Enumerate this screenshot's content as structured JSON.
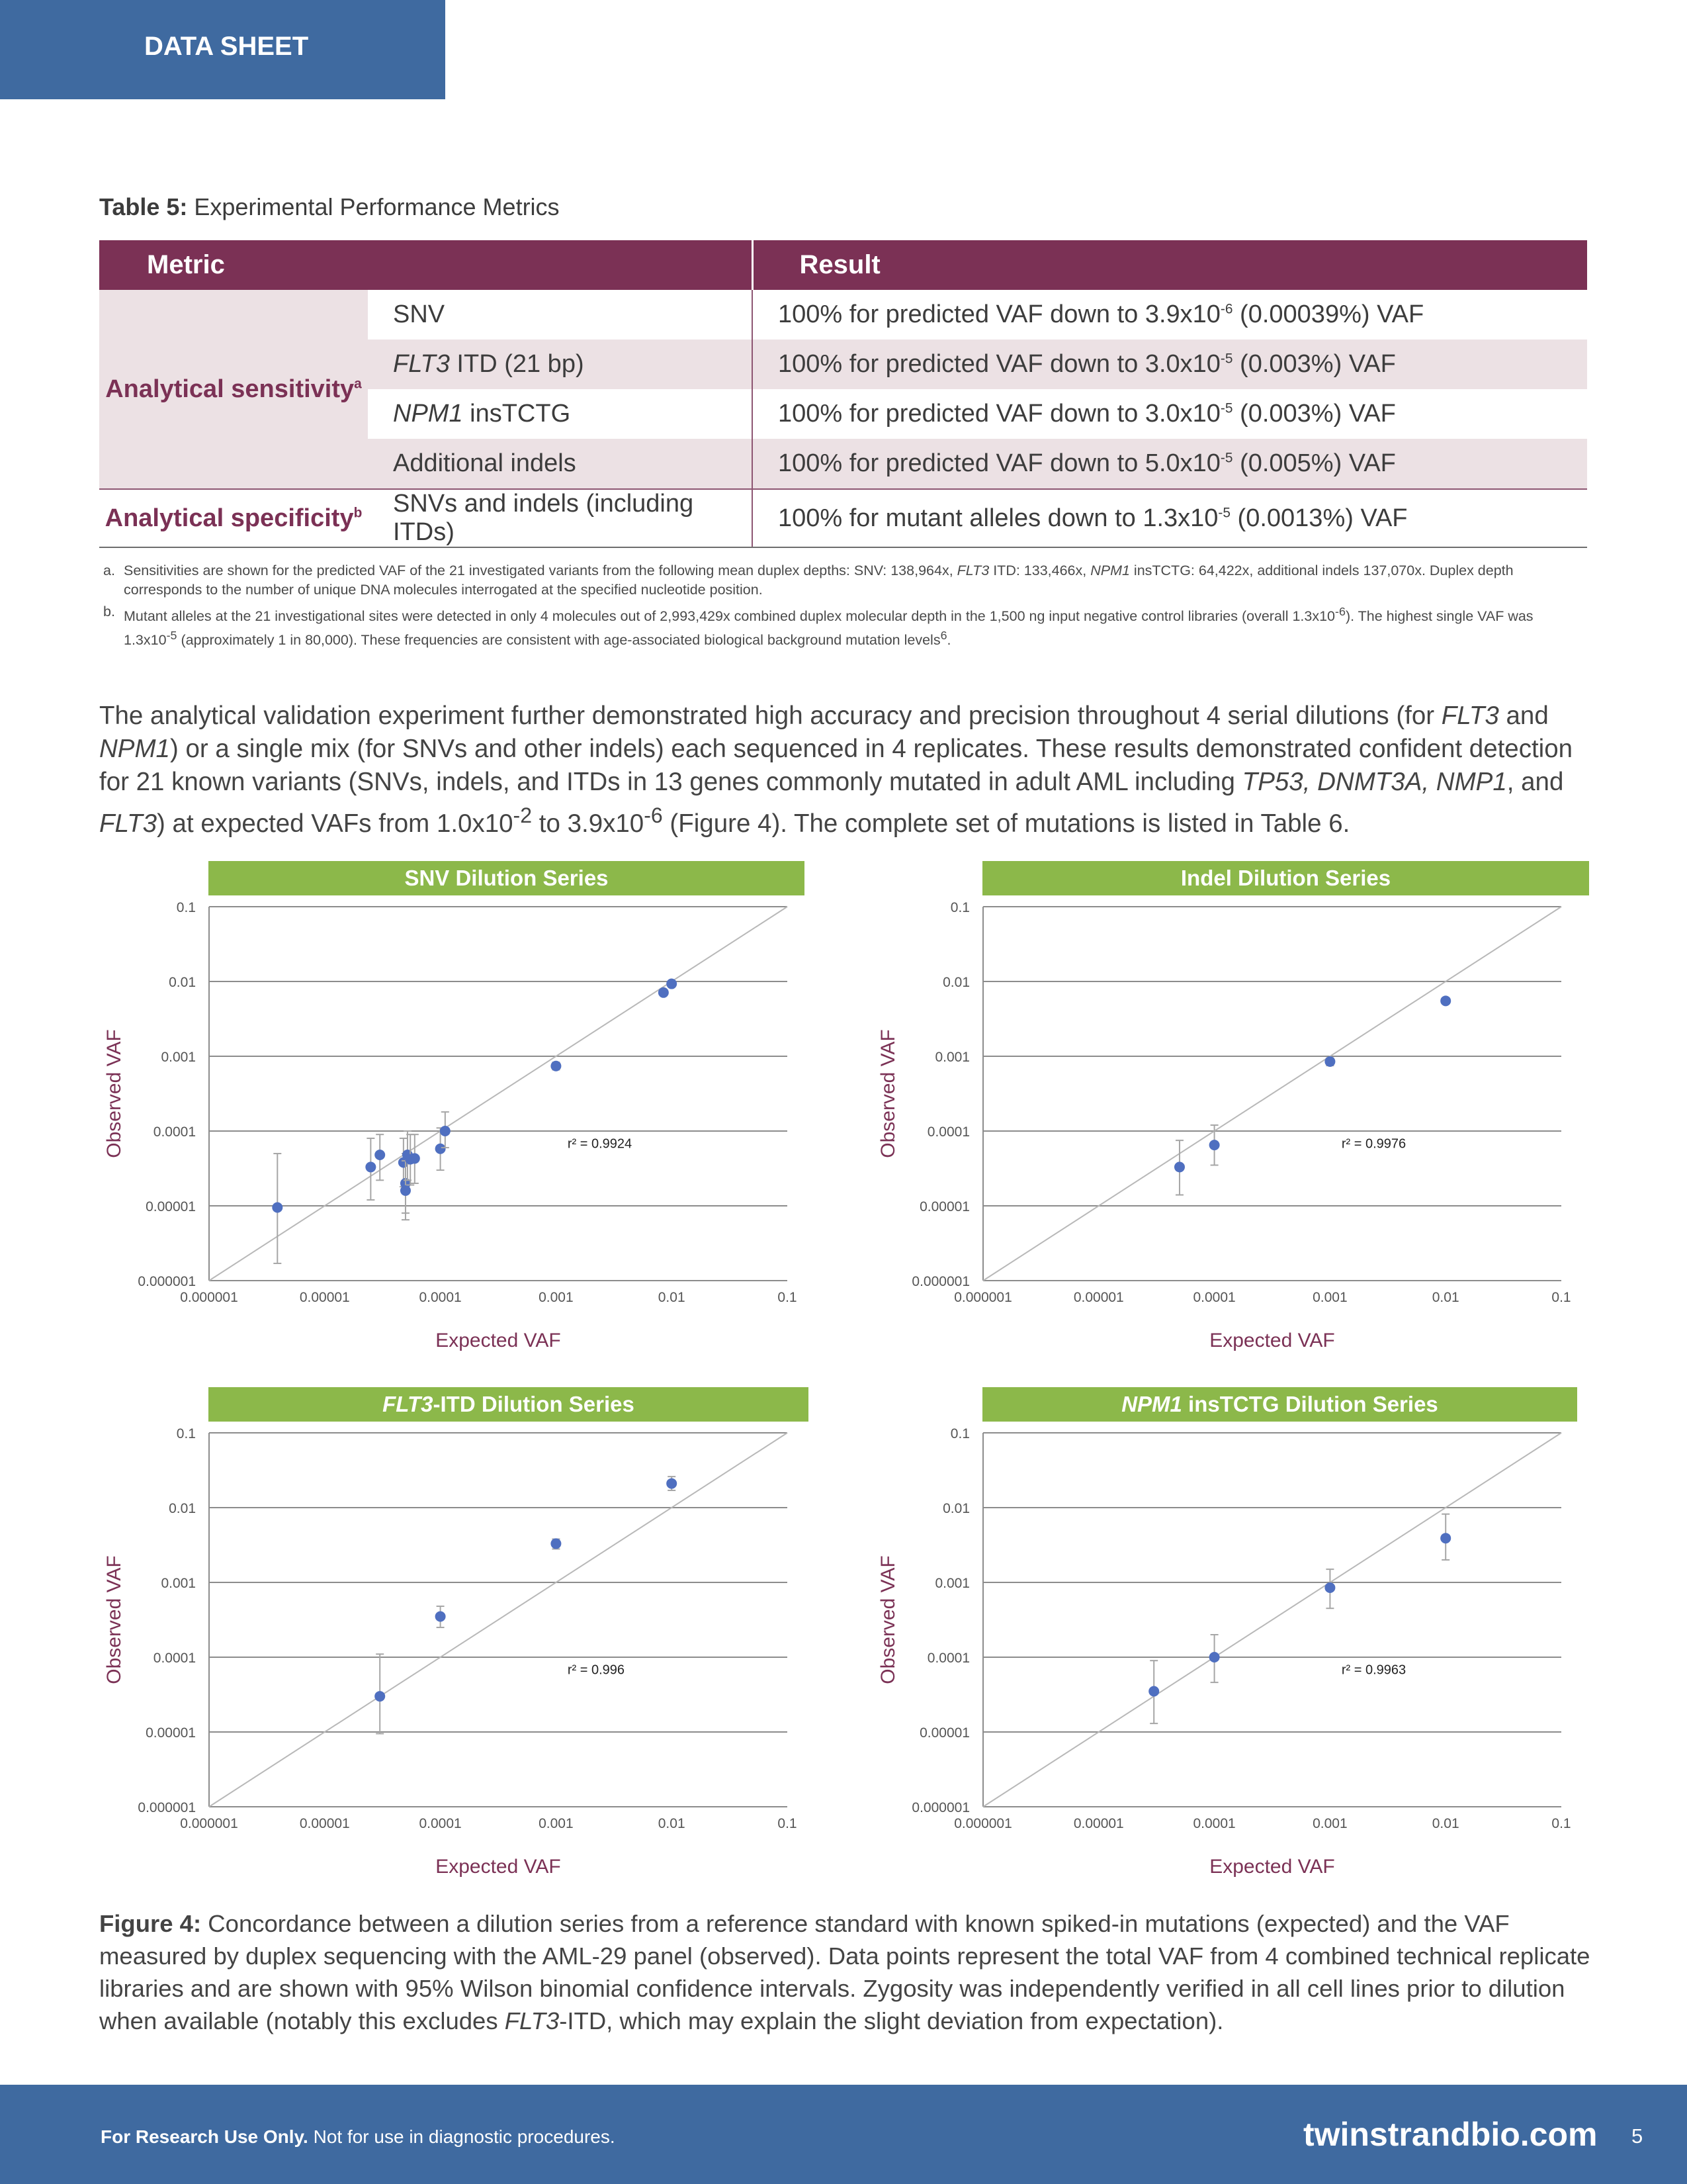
{
  "header": {
    "tab_label": "DATA SHEET"
  },
  "table": {
    "caption_bold": "Table 5:",
    "caption_text": " Experimental Performance Metrics",
    "col_metric": "Metric",
    "col_result": "Result",
    "group1_label": "Analytical sensitivity",
    "group1_sup": "a",
    "group2_label": "Analytical specificity",
    "group2_sup": "b",
    "rows": [
      {
        "metric_i": "",
        "metric": "SNV",
        "result_pre": "100% for predicted VAF down to 3.9x10",
        "exp": "-6",
        "result_post": " (0.00039%) VAF"
      },
      {
        "metric_i": "FLT3",
        "metric": " ITD (21 bp)",
        "result_pre": "100% for predicted VAF down to 3.0x10",
        "exp": "-5",
        "result_post": " (0.003%) VAF"
      },
      {
        "metric_i": "NPM1",
        "metric": " insTCTG",
        "result_pre": "100% for predicted VAF down to 3.0x10",
        "exp": "-5",
        "result_post": " (0.003%) VAF"
      },
      {
        "metric_i": "",
        "metric": "Additional indels",
        "result_pre": "100% for predicted VAF down to 5.0x10",
        "exp": "-5",
        "result_post": " (0.005%) VAF"
      },
      {
        "metric_i": "",
        "metric": "SNVs and indels (including ITDs)",
        "result_pre": "100% for mutant alleles down to 1.3x10",
        "exp": "-5",
        "result_post": " (0.0013%) VAF"
      }
    ]
  },
  "footnotes": {
    "a_label": "a.",
    "a_1": "Sensitivities are shown for the predicted VAF of the 21 investigated variants from the following mean duplex depths: SNV: 138,964x, ",
    "a_i1": "FLT3",
    "a_2": " ITD: 133,466x, ",
    "a_i2": "NPM1",
    "a_3": " insTCTG: 64,422x, additional indels 137,070x. Duplex depth corresponds to the number of unique DNA molecules interrogated at the specified nucleotide position.",
    "b_label": "b.",
    "b_1": "Mutant alleles at the 21 investigational sites were detected in only 4 molecules out of 2,993,429x combined duplex molecular depth in the 1,500 ng input negative control libraries (overall 1.3x10",
    "b_e1": "-6",
    "b_2": "). The highest single VAF was 1.3x10",
    "b_e2": "-5",
    "b_3": " (approximately 1 in 80,000). These frequencies are consistent with age-associated biological background mutation levels",
    "b_e3": "6",
    "b_4": "."
  },
  "paragraph": {
    "p1": "The analytical validation experiment further demonstrated high accuracy and precision throughout 4 serial dilutions (for ",
    "i1": "FLT3",
    "p2": " and ",
    "i2": "NPM1",
    "p3": ") or a single mix (for SNVs and other indels) each sequenced in 4 replicates. These results demonstrated confident detection for 21 known variants (SNVs, indels, and ITDs in 13 genes commonly mutated in adult AML including ",
    "i3": "TP53, DNMT3A, NMP1",
    "p4": ", and ",
    "i4": "FLT3",
    "p5": ") at expected VAFs from 1.0x10",
    "e1": "-2",
    "p6": " to 3.9x10",
    "e2": "-6",
    "p7": " (Figure 4). The complete set of mutations is listed in Table 6."
  },
  "chart_data": [
    {
      "type": "scatter",
      "title": "SNV Dilution Series",
      "title_italic": "",
      "xlabel": "Expected VAF",
      "ylabel": "Observed VAF",
      "xscale": "log",
      "yscale": "log",
      "xlim": [
        1e-06,
        0.1
      ],
      "ylim": [
        1e-06,
        0.1
      ],
      "xticks": [
        "0.000001",
        "0.00001",
        "0.0001",
        "0.001",
        "0.01",
        "0.1"
      ],
      "yticks": [
        "0.000001",
        "0.00001",
        "0.0001",
        "0.001",
        "0.01",
        "0.1"
      ],
      "r2": "r² = 0.9924",
      "points": [
        {
          "x": 3.9e-06,
          "y": 9.5e-06,
          "lo": 1.7e-06,
          "hi": 5e-05
        },
        {
          "x": 2.5e-05,
          "y": 3.3e-05,
          "lo": 1.2e-05,
          "hi": 8e-05
        },
        {
          "x": 3e-05,
          "y": 4.8e-05,
          "lo": 2.2e-05,
          "hi": 9e-05
        },
        {
          "x": 4.8e-05,
          "y": 3.8e-05,
          "lo": 1.8e-05,
          "hi": 8e-05
        },
        {
          "x": 5e-05,
          "y": 2e-05,
          "lo": 8e-06,
          "hi": 5e-05
        },
        {
          "x": 5e-05,
          "y": 1.6e-05,
          "lo": 6.5e-06,
          "hi": 4e-05
        },
        {
          "x": 5.2e-05,
          "y": 4.8e-05,
          "lo": 2.2e-05,
          "hi": 0.0001
        },
        {
          "x": 5.5e-05,
          "y": 4.2e-05,
          "lo": 1.9e-05,
          "hi": 9e-05
        },
        {
          "x": 6e-05,
          "y": 4.3e-05,
          "lo": 2e-05,
          "hi": 9e-05
        },
        {
          "x": 0.0001,
          "y": 5.8e-05,
          "lo": 3e-05,
          "hi": 0.00011
        },
        {
          "x": 0.00011,
          "y": 0.0001,
          "lo": 6e-05,
          "hi": 0.00018
        },
        {
          "x": 0.001,
          "y": 0.00074,
          "lo": 0.00066,
          "hi": 0.00083
        },
        {
          "x": 0.0085,
          "y": 0.0071
        },
        {
          "x": 0.01,
          "y": 0.0093
        }
      ]
    },
    {
      "type": "scatter",
      "title": "Indel Dilution Series",
      "title_italic": "",
      "xlabel": "Expected VAF",
      "ylabel": "Observed VAF",
      "xscale": "log",
      "yscale": "log",
      "xlim": [
        1e-06,
        0.1
      ],
      "ylim": [
        1e-06,
        0.1
      ],
      "xticks": [
        "0.000001",
        "0.00001",
        "0.0001",
        "0.001",
        "0.01",
        "0.1"
      ],
      "yticks": [
        "0.000001",
        "0.00001",
        "0.0001",
        "0.001",
        "0.01",
        "0.1"
      ],
      "r2": "r² = 0.9976",
      "points": [
        {
          "x": 5e-05,
          "y": 3.3e-05,
          "lo": 1.4e-05,
          "hi": 7.5e-05
        },
        {
          "x": 0.0001,
          "y": 6.5e-05,
          "lo": 3.5e-05,
          "hi": 0.00012
        },
        {
          "x": 0.001,
          "y": 0.00085,
          "lo": 0.00075,
          "hi": 0.00095
        },
        {
          "x": 0.01,
          "y": 0.0055
        }
      ]
    },
    {
      "type": "scatter",
      "title": "-ITD Dilution Series",
      "title_italic": "FLT3",
      "xlabel": "Expected VAF",
      "ylabel": "Observed VAF",
      "xscale": "log",
      "yscale": "log",
      "xlim": [
        1e-06,
        0.1
      ],
      "ylim": [
        1e-06,
        0.1
      ],
      "xticks": [
        "0.000001",
        "0.00001",
        "0.0001",
        "0.001",
        "0.01",
        "0.1"
      ],
      "yticks": [
        "0.000001",
        "0.00001",
        "0.0001",
        "0.001",
        "0.01",
        "0.1"
      ],
      "r2": "r² = 0.996",
      "points": [
        {
          "x": 3e-05,
          "y": 3e-05,
          "lo": 9.5e-06,
          "hi": 0.00011
        },
        {
          "x": 0.0001,
          "y": 0.00035,
          "lo": 0.00025,
          "hi": 0.00048
        },
        {
          "x": 0.001,
          "y": 0.0033,
          "lo": 0.0028,
          "hi": 0.0038
        },
        {
          "x": 0.01,
          "y": 0.021,
          "lo": 0.017,
          "hi": 0.026
        }
      ]
    },
    {
      "type": "scatter",
      "title": " insTCTG Dilution Series",
      "title_italic": "NPM1",
      "xlabel": "Expected VAF",
      "ylabel": "Observed VAF",
      "xscale": "log",
      "yscale": "log",
      "xlim": [
        1e-06,
        0.1
      ],
      "ylim": [
        1e-06,
        0.1
      ],
      "xticks": [
        "0.000001",
        "0.00001",
        "0.0001",
        "0.001",
        "0.01",
        "0.1"
      ],
      "yticks": [
        "0.000001",
        "0.00001",
        "0.0001",
        "0.001",
        "0.01",
        "0.1"
      ],
      "r2": "r² = 0.9963",
      "points": [
        {
          "x": 3e-05,
          "y": 3.5e-05,
          "lo": 1.3e-05,
          "hi": 9e-05
        },
        {
          "x": 0.0001,
          "y": 0.0001,
          "lo": 4.6e-05,
          "hi": 0.0002
        },
        {
          "x": 0.001,
          "y": 0.00085,
          "lo": 0.00045,
          "hi": 0.0015
        },
        {
          "x": 0.01,
          "y": 0.0039,
          "lo": 0.002,
          "hi": 0.0082
        }
      ]
    }
  ],
  "caption": {
    "bold": "Figure 4:",
    "t1": " Concordance between a dilution series from a reference standard with known spiked-in mutations (expected) and the VAF measured by duplex sequencing with the AML-29 panel (observed). Data points represent the total VAF from 4 combined technical replicate libraries and are shown with 95% Wilson binomial confidence intervals. Zygosity was independently verified in all cell lines prior to dilution when available (notably this excludes ",
    "i1": "FLT3",
    "t2": "-ITD, which may explain the slight deviation from expectation)."
  },
  "footer": {
    "disclaimer_bold": "For Research Use Only.",
    "disclaimer": " Not for use in diagnostic procedures.",
    "website": "twinstrandbio.com",
    "page_number": "5"
  }
}
